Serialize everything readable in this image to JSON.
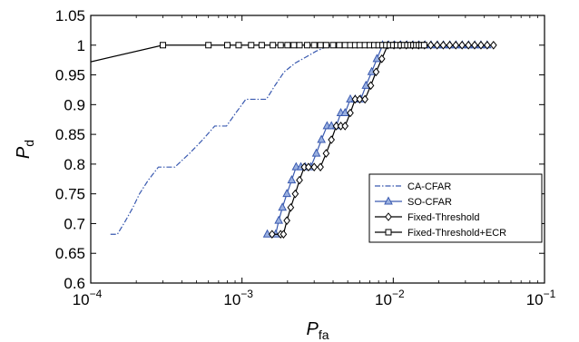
{
  "chart_data": {
    "type": "line",
    "x_scale": "log",
    "xlim": [
      0.0001,
      0.1
    ],
    "ylim": [
      0.6,
      1.05
    ],
    "x_tick_labels": [
      {
        "base": "10",
        "exp": "−4"
      },
      {
        "base": "10",
        "exp": "−3"
      },
      {
        "base": "10",
        "exp": "−2"
      },
      {
        "base": "10",
        "exp": "−1"
      }
    ],
    "y_ticks": [
      "0.6",
      "0.65",
      "0.7",
      "0.75",
      "0.8",
      "0.85",
      "0.9",
      "0.95",
      "1",
      "1.05"
    ],
    "xlabel": {
      "main": "P",
      "sub": "fa"
    },
    "ylabel": {
      "main": "P",
      "sub": "d"
    },
    "grid": false,
    "legend_position": "lower-right",
    "series": [
      {
        "name": "CA-CFAR",
        "color": "#3a5ab0",
        "line": "dashdot",
        "marker": "none",
        "x": [
          0.000135,
          0.00015,
          0.00017,
          0.00019,
          0.00021,
          0.00024,
          0.00028,
          0.00036,
          0.00045,
          0.00055,
          0.00066,
          0.00079,
          0.00091,
          0.00106,
          0.00125,
          0.00145,
          0.00165,
          0.0019,
          0.00225,
          0.00265,
          0.0031,
          0.0036,
          0.0041
        ],
        "y": [
          0.682,
          0.682,
          0.705,
          0.727,
          0.75,
          0.773,
          0.795,
          0.795,
          0.818,
          0.841,
          0.864,
          0.864,
          0.886,
          0.909,
          0.909,
          0.909,
          0.932,
          0.955,
          0.97,
          0.98,
          0.99,
          0.997,
          1.0
        ]
      },
      {
        "name": "SO-CFAR",
        "color": "#3a5ab0",
        "line": "solid",
        "marker": "triangle",
        "x": [
          0.00147,
          0.00167,
          0.00175,
          0.00185,
          0.00198,
          0.00213,
          0.00228,
          0.00245,
          0.00262,
          0.00285,
          0.0031,
          0.00335,
          0.00365,
          0.0039,
          0.0042,
          0.0045,
          0.0048,
          0.0052,
          0.0056,
          0.0061,
          0.0066,
          0.0072,
          0.0078,
          0.0085,
          0.0093,
          0.0102,
          0.0112,
          0.0123,
          0.0135,
          0.0148,
          0.0162,
          0.0178,
          0.0196,
          0.0215,
          0.0237,
          0.026,
          0.0286,
          0.0315,
          0.0346,
          0.038,
          0.0418
        ],
        "y": [
          0.682,
          0.682,
          0.705,
          0.727,
          0.75,
          0.773,
          0.795,
          0.795,
          0.795,
          0.795,
          0.818,
          0.841,
          0.864,
          0.864,
          0.864,
          0.886,
          0.886,
          0.909,
          0.909,
          0.909,
          0.932,
          0.955,
          0.977,
          1.0,
          1.0,
          1.0,
          1.0,
          1.0,
          1.0,
          1.0,
          1.0,
          1.0,
          1.0,
          1.0,
          1.0,
          1.0,
          1.0,
          1.0,
          1.0,
          1.0,
          1.0
        ]
      },
      {
        "name": "Fixed-Threshold",
        "color": "#000000",
        "line": "solid",
        "marker": "diamond",
        "x": [
          0.00158,
          0.0018,
          0.00188,
          0.00198,
          0.0021,
          0.00225,
          0.0024,
          0.00258,
          0.00275,
          0.003,
          0.0033,
          0.0036,
          0.0039,
          0.0042,
          0.0045,
          0.0048,
          0.0052,
          0.0056,
          0.006,
          0.0065,
          0.0071,
          0.0077,
          0.0084,
          0.0092,
          0.0101,
          0.0111,
          0.0122,
          0.0134,
          0.0147,
          0.0161,
          0.0177,
          0.0195,
          0.0214,
          0.0236,
          0.0259,
          0.0285,
          0.0314,
          0.0345,
          0.038,
          0.0418,
          0.046
        ],
        "y": [
          0.682,
          0.682,
          0.682,
          0.705,
          0.727,
          0.75,
          0.773,
          0.795,
          0.795,
          0.795,
          0.795,
          0.818,
          0.841,
          0.864,
          0.864,
          0.864,
          0.886,
          0.909,
          0.909,
          0.909,
          0.932,
          0.955,
          0.977,
          1.0,
          1.0,
          1.0,
          1.0,
          1.0,
          1.0,
          1.0,
          1.0,
          1.0,
          1.0,
          1.0,
          1.0,
          1.0,
          1.0,
          1.0,
          1.0,
          1.0,
          1.0
        ]
      },
      {
        "name": "Fixed-Threshold+ECR",
        "color": "#000000",
        "line": "solid",
        "marker": "square",
        "x": [
          0.0001,
          0.0003,
          0.0006,
          0.0008,
          0.00095,
          0.00115,
          0.00135,
          0.0016,
          0.0018,
          0.002,
          0.0022,
          0.0024,
          0.0027,
          0.003,
          0.0033,
          0.0036,
          0.004,
          0.0044,
          0.0048,
          0.0052,
          0.0056,
          0.006,
          0.0065,
          0.007,
          0.0075,
          0.008,
          0.0085,
          0.009,
          0.0095,
          0.01,
          0.0106,
          0.0112,
          0.0118,
          0.0124,
          0.013,
          0.0136,
          0.0142,
          0.0148,
          0.0154,
          0.016
        ],
        "y": [
          0.972,
          1.0,
          1.0,
          1.0,
          1.0,
          1.0,
          1.0,
          1.0,
          1.0,
          1.0,
          1.0,
          1.0,
          1.0,
          1.0,
          1.0,
          1.0,
          1.0,
          1.0,
          1.0,
          1.0,
          1.0,
          1.0,
          1.0,
          1.0,
          1.0,
          1.0,
          1.0,
          1.0,
          1.0,
          1.0,
          1.0,
          1.0,
          1.0,
          1.0,
          1.0,
          1.0,
          1.0,
          1.0,
          1.0,
          1.0
        ]
      }
    ]
  }
}
